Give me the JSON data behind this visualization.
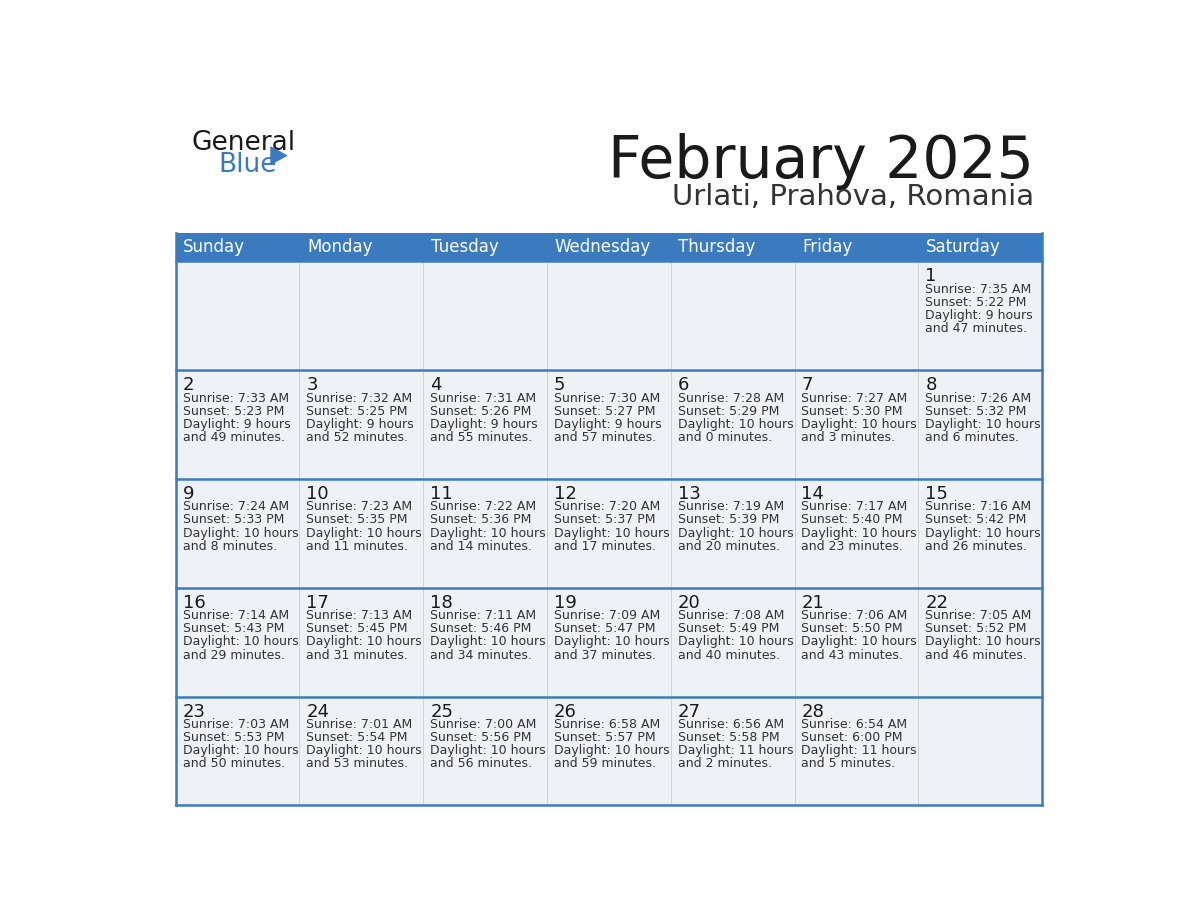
{
  "title": "February 2025",
  "subtitle": "Urlati, Prahova, Romania",
  "header_color": "#3a7bbf",
  "header_text_color": "#ffffff",
  "cell_bg_color": "#eef2f7",
  "border_color": "#3a7bbf",
  "row_line_color": "#3a7bbf",
  "col_line_color": "#cccccc",
  "days_of_week": [
    "Sunday",
    "Monday",
    "Tuesday",
    "Wednesday",
    "Thursday",
    "Friday",
    "Saturday"
  ],
  "title_color": "#1a1a1a",
  "subtitle_color": "#333333",
  "day_number_color": "#1a1a1a",
  "info_color": "#333333",
  "logo_general_color": "#1a1a1a",
  "logo_blue_color": "#3a7bbf",
  "calendar_data": [
    [
      null,
      null,
      null,
      null,
      null,
      null,
      {
        "day": 1,
        "sunrise": "7:35 AM",
        "sunset": "5:22 PM",
        "daylight_hours": 9,
        "daylight_minutes": 47
      }
    ],
    [
      {
        "day": 2,
        "sunrise": "7:33 AM",
        "sunset": "5:23 PM",
        "daylight_hours": 9,
        "daylight_minutes": 49
      },
      {
        "day": 3,
        "sunrise": "7:32 AM",
        "sunset": "5:25 PM",
        "daylight_hours": 9,
        "daylight_minutes": 52
      },
      {
        "day": 4,
        "sunrise": "7:31 AM",
        "sunset": "5:26 PM",
        "daylight_hours": 9,
        "daylight_minutes": 55
      },
      {
        "day": 5,
        "sunrise": "7:30 AM",
        "sunset": "5:27 PM",
        "daylight_hours": 9,
        "daylight_minutes": 57
      },
      {
        "day": 6,
        "sunrise": "7:28 AM",
        "sunset": "5:29 PM",
        "daylight_hours": 10,
        "daylight_minutes": 0
      },
      {
        "day": 7,
        "sunrise": "7:27 AM",
        "sunset": "5:30 PM",
        "daylight_hours": 10,
        "daylight_minutes": 3
      },
      {
        "day": 8,
        "sunrise": "7:26 AM",
        "sunset": "5:32 PM",
        "daylight_hours": 10,
        "daylight_minutes": 6
      }
    ],
    [
      {
        "day": 9,
        "sunrise": "7:24 AM",
        "sunset": "5:33 PM",
        "daylight_hours": 10,
        "daylight_minutes": 8
      },
      {
        "day": 10,
        "sunrise": "7:23 AM",
        "sunset": "5:35 PM",
        "daylight_hours": 10,
        "daylight_minutes": 11
      },
      {
        "day": 11,
        "sunrise": "7:22 AM",
        "sunset": "5:36 PM",
        "daylight_hours": 10,
        "daylight_minutes": 14
      },
      {
        "day": 12,
        "sunrise": "7:20 AM",
        "sunset": "5:37 PM",
        "daylight_hours": 10,
        "daylight_minutes": 17
      },
      {
        "day": 13,
        "sunrise": "7:19 AM",
        "sunset": "5:39 PM",
        "daylight_hours": 10,
        "daylight_minutes": 20
      },
      {
        "day": 14,
        "sunrise": "7:17 AM",
        "sunset": "5:40 PM",
        "daylight_hours": 10,
        "daylight_minutes": 23
      },
      {
        "day": 15,
        "sunrise": "7:16 AM",
        "sunset": "5:42 PM",
        "daylight_hours": 10,
        "daylight_minutes": 26
      }
    ],
    [
      {
        "day": 16,
        "sunrise": "7:14 AM",
        "sunset": "5:43 PM",
        "daylight_hours": 10,
        "daylight_minutes": 29
      },
      {
        "day": 17,
        "sunrise": "7:13 AM",
        "sunset": "5:45 PM",
        "daylight_hours": 10,
        "daylight_minutes": 31
      },
      {
        "day": 18,
        "sunrise": "7:11 AM",
        "sunset": "5:46 PM",
        "daylight_hours": 10,
        "daylight_minutes": 34
      },
      {
        "day": 19,
        "sunrise": "7:09 AM",
        "sunset": "5:47 PM",
        "daylight_hours": 10,
        "daylight_minutes": 37
      },
      {
        "day": 20,
        "sunrise": "7:08 AM",
        "sunset": "5:49 PM",
        "daylight_hours": 10,
        "daylight_minutes": 40
      },
      {
        "day": 21,
        "sunrise": "7:06 AM",
        "sunset": "5:50 PM",
        "daylight_hours": 10,
        "daylight_minutes": 43
      },
      {
        "day": 22,
        "sunrise": "7:05 AM",
        "sunset": "5:52 PM",
        "daylight_hours": 10,
        "daylight_minutes": 46
      }
    ],
    [
      {
        "day": 23,
        "sunrise": "7:03 AM",
        "sunset": "5:53 PM",
        "daylight_hours": 10,
        "daylight_minutes": 50
      },
      {
        "day": 24,
        "sunrise": "7:01 AM",
        "sunset": "5:54 PM",
        "daylight_hours": 10,
        "daylight_minutes": 53
      },
      {
        "day": 25,
        "sunrise": "7:00 AM",
        "sunset": "5:56 PM",
        "daylight_hours": 10,
        "daylight_minutes": 56
      },
      {
        "day": 26,
        "sunrise": "6:58 AM",
        "sunset": "5:57 PM",
        "daylight_hours": 10,
        "daylight_minutes": 59
      },
      {
        "day": 27,
        "sunrise": "6:56 AM",
        "sunset": "5:58 PM",
        "daylight_hours": 11,
        "daylight_minutes": 2
      },
      {
        "day": 28,
        "sunrise": "6:54 AM",
        "sunset": "6:00 PM",
        "daylight_hours": 11,
        "daylight_minutes": 5
      },
      null
    ]
  ]
}
